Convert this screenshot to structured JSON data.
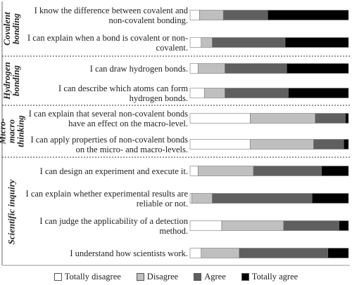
{
  "chart_data": {
    "type": "bar",
    "orientation": "horizontal",
    "stacked": true,
    "xlim": [
      0,
      100
    ],
    "groups": [
      {
        "name": "Covalent bonding",
        "categories": [
          "I know the difference between covalent and non-covalent bonding.",
          "I can explain when a bond is covalent or non-covalent."
        ]
      },
      {
        "name": "Hydrogen bonding",
        "categories": [
          "I can draw hydrogen bonds.",
          "I can describe which atoms can form hydrogen bonds."
        ]
      },
      {
        "name": "Micro-macro thinking",
        "categories": [
          "I can explain that several non-covalent bonds have an effect on the macro-level.",
          "I can apply properties of non-covalent bonds on the micro- and macro-levels."
        ]
      },
      {
        "name": "Scientific inquiry",
        "categories": [
          "I can design an experiment and execute it.",
          "I can explain whether experimental results are reliable or not.",
          "I can judge the applicability of a detection method.",
          "I understand how scientists work."
        ]
      }
    ],
    "series": [
      {
        "name": "Totally disagree",
        "color": "#ffffff",
        "values": [
          6,
          7,
          5,
          9,
          38,
          38,
          5,
          1,
          20,
          7
        ]
      },
      {
        "name": "Disagree",
        "color": "#bfbfbf",
        "values": [
          15,
          7,
          17,
          13,
          41,
          40,
          35,
          13,
          39,
          24
        ]
      },
      {
        "name": "Agree",
        "color": "#5f5f5f",
        "values": [
          28,
          46,
          39,
          40,
          19,
          19,
          43,
          63,
          35,
          56
        ]
      },
      {
        "name": "Totally agree",
        "color": "#000000",
        "values": [
          51,
          40,
          39,
          38,
          2,
          3,
          17,
          23,
          6,
          13
        ]
      }
    ]
  }
}
